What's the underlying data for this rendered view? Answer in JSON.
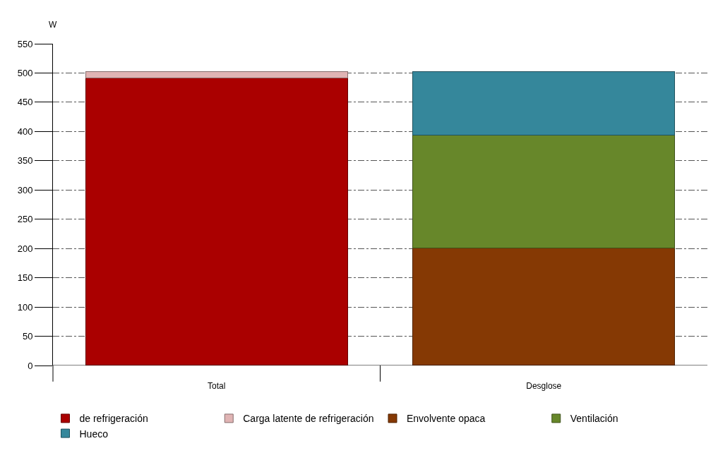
{
  "chart_data": {
    "type": "bar",
    "stacked": true,
    "ylabel": "W",
    "categories": [
      "Total",
      "Desglose"
    ],
    "series": [
      {
        "name": "de refrigeración",
        "color": "#aa0000",
        "values": [
          491,
          null
        ]
      },
      {
        "name": "Carga latente de refrigeración",
        "color": "#e0b4b4",
        "values": [
          11,
          null
        ]
      },
      {
        "name": "Envolvente opaca",
        "color": "#853904",
        "values": [
          null,
          201
        ]
      },
      {
        "name": "Ventilación",
        "color": "#67872a",
        "values": [
          null,
          193
        ]
      },
      {
        "name": "Hueco",
        "color": "#35879b",
        "values": [
          null,
          108
        ]
      }
    ],
    "ylim": [
      0,
      550
    ],
    "yticks": [
      0,
      50,
      100,
      150,
      200,
      250,
      300,
      350,
      400,
      450,
      500,
      550
    ],
    "grid": "y",
    "legend": "bottom"
  }
}
